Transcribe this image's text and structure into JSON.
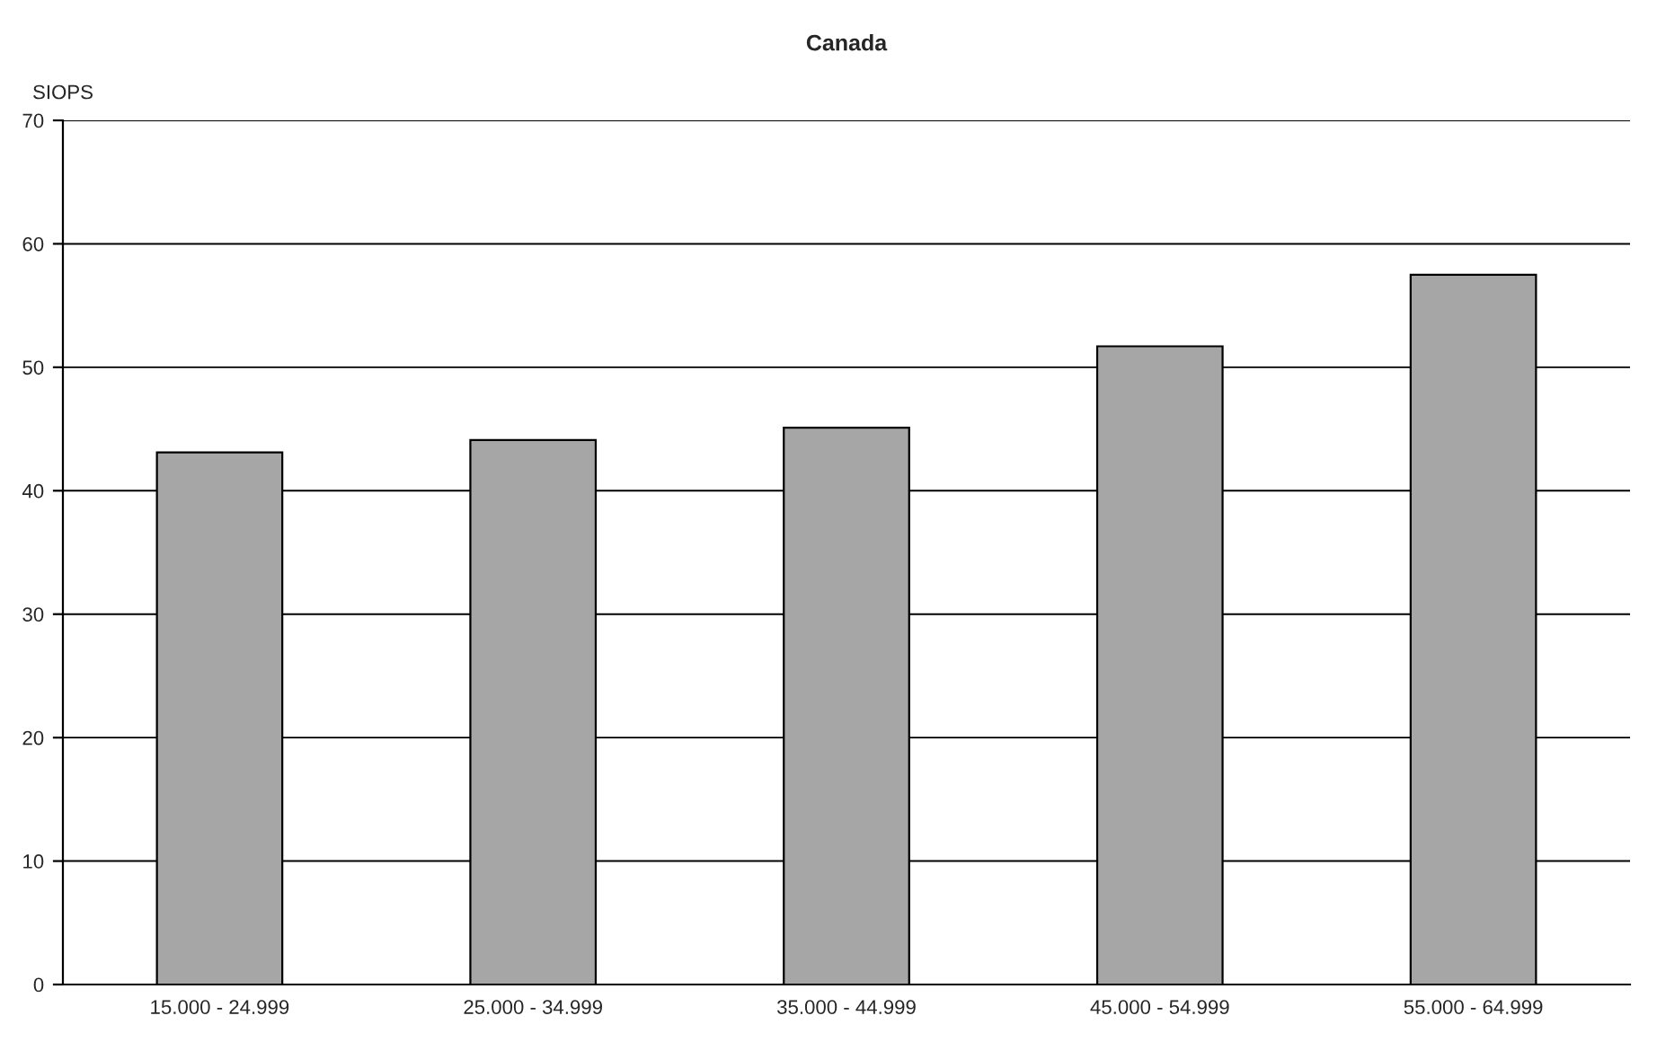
{
  "chart_data": {
    "type": "bar",
    "title": "Canada",
    "ylabel": "SIOPS",
    "categories": [
      "15.000 - 24.999",
      "25.000 - 34.999",
      "35.000 - 44.999",
      "45.000 - 54.999",
      "55.000 - 64.999"
    ],
    "values": [
      43.1,
      44.1,
      45.1,
      51.7,
      57.5
    ],
    "color": "#a6a6a6",
    "ylim": [
      0,
      70
    ],
    "yticks": [
      0,
      10,
      20,
      30,
      40,
      50,
      60,
      70
    ],
    "grid": "y",
    "legend": false
  }
}
